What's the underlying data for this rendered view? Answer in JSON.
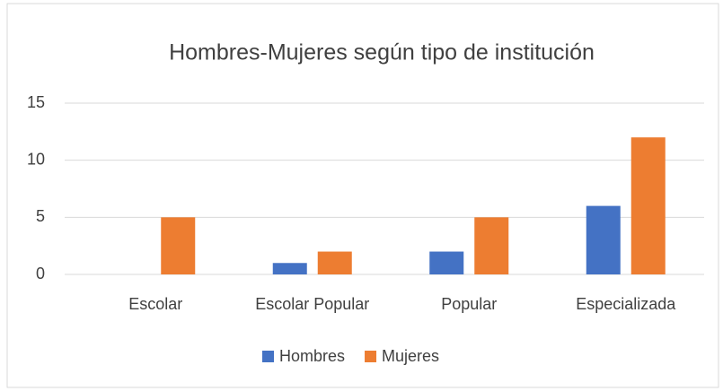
{
  "chart_data": {
    "type": "bar",
    "title": "Hombres-Mujeres según tipo de institución",
    "categories": [
      "Escolar",
      "Escolar Popular",
      "Popular",
      "Especializada"
    ],
    "series": [
      {
        "name": "Hombres",
        "color": "#4472c4",
        "values": [
          0,
          1,
          2,
          6
        ]
      },
      {
        "name": "Mujeres",
        "color": "#ed7d31",
        "values": [
          5,
          2,
          5,
          12
        ]
      }
    ],
    "ylim": [
      0,
      15
    ],
    "yticks": [
      0,
      5,
      10,
      15
    ],
    "grid": true,
    "legend": "bottom"
  }
}
